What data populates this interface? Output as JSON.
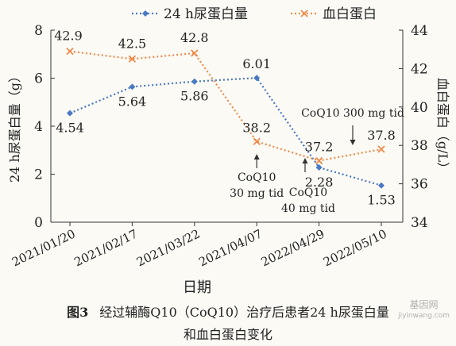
{
  "chart_data": {
    "type": "line",
    "categories": [
      "2021/01/20",
      "2021/02/17",
      "2021/03/22",
      "2021/04/07",
      "2022/04/29",
      "2022/05/10"
    ],
    "xlabel": "日期",
    "ylabel_left": "24 h尿蛋白量（g）",
    "ylabel_right": "血白蛋白（g/L）",
    "ylim_left": [
      0,
      8
    ],
    "ylim_right": [
      34,
      44
    ],
    "yticks_left": [
      "0",
      "2",
      "4",
      "6",
      "8"
    ],
    "yticks_right": [
      "34",
      "36",
      "38",
      "40",
      "42",
      "44"
    ],
    "grid": false,
    "legend_position": "top",
    "series": [
      {
        "name": "24 h尿蛋白量",
        "axis": "left",
        "color": "#4a78c2",
        "marker": "diamond",
        "values": [
          4.54,
          5.64,
          5.86,
          6.01,
          2.28,
          1.53
        ],
        "labels": [
          "4.54",
          "5.64",
          "5.86",
          "6.01",
          "2.28",
          "1.53"
        ]
      },
      {
        "name": "血白蛋白",
        "axis": "right",
        "color": "#ee8a4a",
        "marker": "x",
        "values": [
          42.9,
          42.5,
          42.8,
          38.2,
          37.2,
          37.8
        ],
        "labels": [
          "42.9",
          "42.5",
          "42.8",
          "38.2",
          "37.2",
          "37.8"
        ]
      }
    ],
    "annotations": [
      {
        "lines": [
          "CoQ10",
          "30 mg tid"
        ]
      },
      {
        "lines": [
          "CoQ10",
          "40 mg tid"
        ]
      },
      {
        "lines": [
          "CoQ10 300 mg tid"
        ]
      }
    ]
  },
  "caption": {
    "label": "图3",
    "line1": "经过辅酶Q10（CoQ10）治疗后患者24 h尿蛋白量",
    "line2": "和血白蛋白变化"
  },
  "watermark": {
    "text": "基因网",
    "url": "jiyinwang.com"
  }
}
